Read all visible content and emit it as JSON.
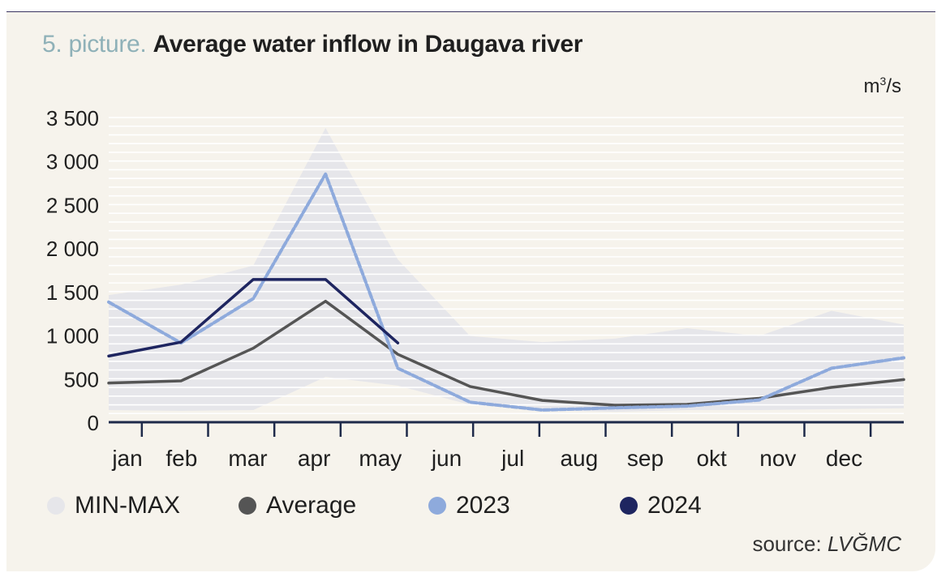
{
  "title": {
    "prefix": "5. picture.",
    "main": "Average water inflow in Daugava river"
  },
  "unit": {
    "base": "m",
    "exp": "3",
    "rest": "/s"
  },
  "source": {
    "label": "source:",
    "org": "LVĞMC"
  },
  "legend": [
    {
      "label": "MIN-MAX",
      "color": "#e6e6ea"
    },
    {
      "label": "Average",
      "color": "#555555"
    },
    {
      "label": "2023",
      "color": "#8eaadc"
    },
    {
      "label": "2024",
      "color": "#1e2560"
    }
  ],
  "chart_data": {
    "type": "line",
    "title": "Average water inflow in Daugava river",
    "ylabel": "m3/s",
    "ylim": [
      0,
      3500
    ],
    "yticks": [
      0,
      500,
      1000,
      1500,
      2000,
      2500,
      3000,
      3500
    ],
    "ytick_labels": [
      "0",
      "500",
      "1 000",
      "1 500",
      "2 000",
      "2 500",
      "3 000",
      "3 500"
    ],
    "month_labels": [
      "jan",
      "feb",
      "mar",
      "apr",
      "may",
      "jun",
      "jul",
      "aug",
      "sep",
      "okt",
      "nov",
      "dec"
    ],
    "xlim": [
      0,
      11
    ],
    "grid": true,
    "legend_position": "bottom",
    "band": {
      "name": "MIN-MAX",
      "color": "#e6e6ea",
      "x": [
        0,
        1,
        2,
        3,
        4,
        5,
        6,
        7,
        8,
        9,
        10,
        11
      ],
      "upper": [
        1460,
        1580,
        1800,
        3380,
        1870,
        990,
        920,
        960,
        1080,
        990,
        1280,
        1120
      ],
      "lower": [
        140,
        130,
        140,
        520,
        420,
        200,
        140,
        120,
        140,
        140,
        150,
        160
      ]
    },
    "series": [
      {
        "name": "Average",
        "color": "#555555",
        "dashed": false,
        "x": [
          0,
          1,
          2,
          3,
          4,
          5,
          6,
          7,
          8,
          9,
          10,
          11
        ],
        "values": [
          450,
          475,
          850,
          1390,
          780,
          410,
          250,
          195,
          205,
          275,
          400,
          490
        ]
      },
      {
        "name": "2023",
        "color": "#8eaadc",
        "dashed": true,
        "x": [
          0,
          1,
          2,
          3,
          4,
          5,
          6,
          7,
          8,
          9,
          10,
          11
        ],
        "values": [
          1380,
          910,
          1420,
          2850,
          620,
          230,
          140,
          165,
          185,
          255,
          620,
          740
        ]
      },
      {
        "name": "2024",
        "color": "#1e2560",
        "dashed": false,
        "x": [
          0,
          1,
          2,
          3,
          4
        ],
        "values": [
          760,
          920,
          1640,
          1640,
          910
        ]
      }
    ]
  }
}
